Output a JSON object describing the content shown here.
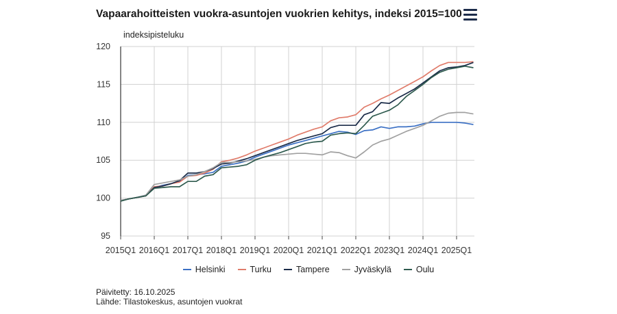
{
  "header": {
    "title": "Vapaarahoitteisten vuokra-asuntojen vuokrien kehitys, indeksi 2015=100",
    "menu_icon": "hamburger-menu-icon"
  },
  "footer": {
    "updated": "Päivitetty: 16.10.2025",
    "source": "Lähde: Tilastokeskus, asuntojen vuokrat"
  },
  "chart_data": {
    "type": "line",
    "title": "Vapaarahoitteisten vuokra-asuntojen vuokrien kehitys, indeksi 2015=100",
    "ylabel": "indeksipisteluku",
    "xlabel": "",
    "ylim": [
      95,
      120
    ],
    "yticks": [
      "95",
      "100",
      "105",
      "110",
      "115",
      "120"
    ],
    "xticks": [
      "2015Q1",
      "2016Q1",
      "2017Q1",
      "2018Q1",
      "2019Q1",
      "2020Q1",
      "2021Q1",
      "2022Q1",
      "2023Q1",
      "2024Q1",
      "2025Q1"
    ],
    "x_start": "2015Q1",
    "x_end": "2025Q3",
    "grid": true,
    "legend_position": "bottom",
    "series": [
      {
        "name": "Helsinki",
        "color": "#3a6fc4",
        "values": [
          99.7,
          99.9,
          100.1,
          100.4,
          101.4,
          101.7,
          101.9,
          102.2,
          103.0,
          103.1,
          103.2,
          103.4,
          104.2,
          104.4,
          104.6,
          104.9,
          105.4,
          105.8,
          106.2,
          106.6,
          107.0,
          107.3,
          107.6,
          107.9,
          108.2,
          108.5,
          108.8,
          108.7,
          108.4,
          108.9,
          109.0,
          109.4,
          109.2,
          109.4,
          109.4,
          109.5,
          109.8,
          110.0,
          110.0,
          110.0,
          110.0,
          109.9,
          109.7
        ]
      },
      {
        "name": "Turku",
        "color": "#e07b6a",
        "values": [
          99.7,
          99.9,
          100.1,
          100.3,
          101.5,
          101.6,
          101.9,
          102.1,
          102.9,
          103.0,
          103.3,
          103.8,
          104.8,
          105.0,
          105.3,
          105.7,
          106.2,
          106.6,
          107.0,
          107.4,
          107.8,
          108.3,
          108.7,
          109.1,
          109.4,
          110.2,
          110.6,
          110.7,
          111.0,
          112.0,
          112.5,
          113.1,
          113.6,
          114.2,
          114.8,
          115.4,
          116.0,
          116.8,
          117.5,
          117.9,
          117.9,
          117.9,
          118.0
        ]
      },
      {
        "name": "Tampere",
        "color": "#1a2b48",
        "values": [
          99.7,
          99.9,
          100.1,
          100.3,
          101.4,
          101.6,
          101.9,
          102.3,
          103.3,
          103.3,
          103.5,
          103.9,
          104.5,
          104.6,
          104.9,
          105.2,
          105.6,
          106.0,
          106.4,
          106.8,
          107.2,
          107.6,
          107.9,
          108.2,
          108.5,
          109.3,
          109.6,
          109.6,
          109.6,
          111.0,
          111.4,
          112.6,
          112.5,
          113.2,
          113.8,
          114.4,
          115.2,
          116.0,
          116.8,
          117.2,
          117.3,
          117.5,
          117.9
        ]
      },
      {
        "name": "Jyväskylä",
        "color": "#a0a0a0",
        "values": [
          99.7,
          99.9,
          100.1,
          100.4,
          101.8,
          102.0,
          102.2,
          102.4,
          102.9,
          103.1,
          103.5,
          104.0,
          104.7,
          104.7,
          104.8,
          104.9,
          105.1,
          105.4,
          105.6,
          105.7,
          105.8,
          105.9,
          105.9,
          105.8,
          105.7,
          106.1,
          106.0,
          105.6,
          105.3,
          106.1,
          107.0,
          107.5,
          107.8,
          108.3,
          108.8,
          109.2,
          109.6,
          110.2,
          110.8,
          111.2,
          111.3,
          111.3,
          111.1
        ]
      },
      {
        "name": "Oulu",
        "color": "#2e5a4e",
        "values": [
          99.6,
          99.9,
          100.1,
          100.3,
          101.3,
          101.4,
          101.5,
          101.5,
          102.2,
          102.2,
          102.9,
          103.1,
          104.0,
          104.1,
          104.2,
          104.4,
          105.0,
          105.4,
          105.7,
          106.0,
          106.4,
          106.8,
          107.2,
          107.4,
          107.5,
          108.3,
          108.5,
          108.6,
          108.5,
          109.6,
          110.8,
          111.2,
          111.6,
          112.3,
          113.4,
          114.2,
          115.0,
          115.9,
          116.6,
          117.0,
          117.2,
          117.4,
          117.2
        ]
      }
    ]
  }
}
